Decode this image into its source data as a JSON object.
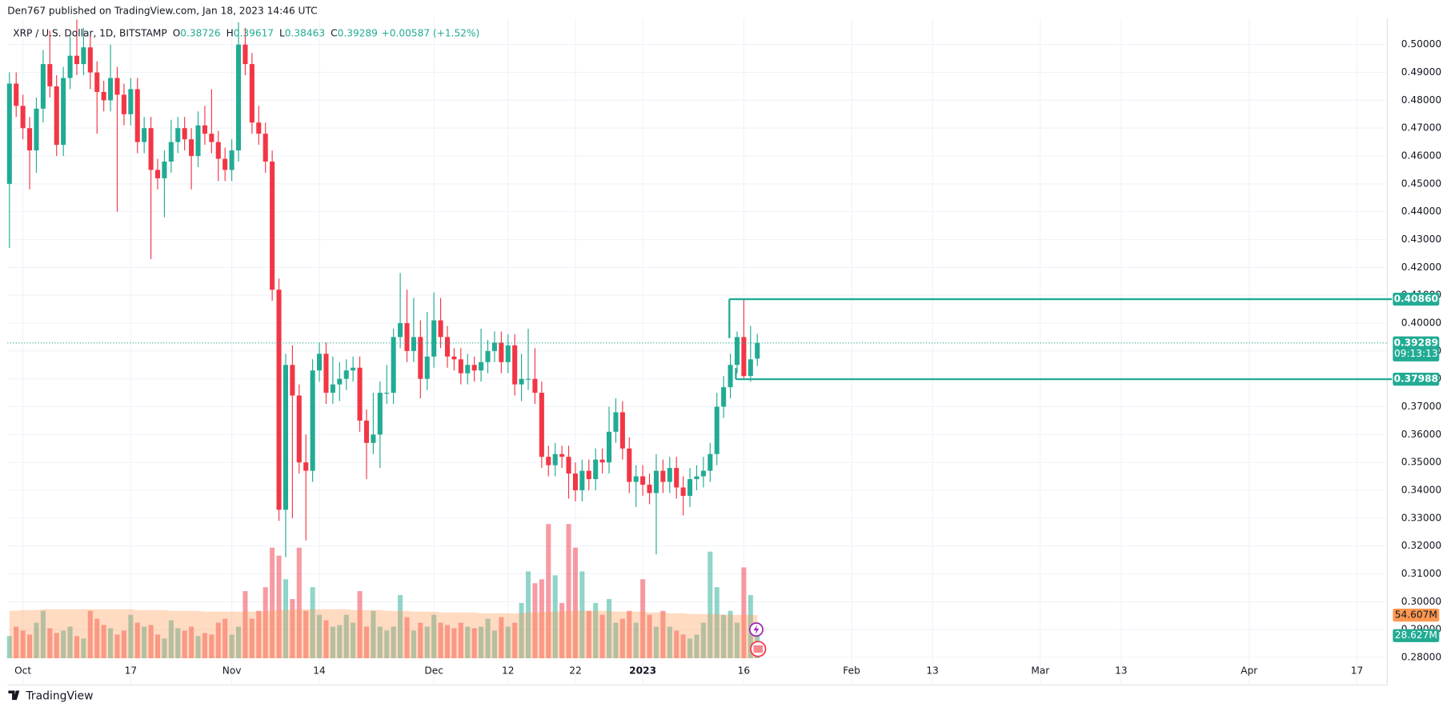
{
  "header": {
    "published": "Den767 published on TradingView.com, Jan 18, 2023 14:46 UTC"
  },
  "footer": {
    "logo": "TradingView"
  },
  "chart_data": {
    "type": "candlestick",
    "symbol": "XRP / U.S. Dollar, 1D, BITSTAMP",
    "ohlc_prefixes": [
      "O",
      "H",
      "L",
      "C"
    ],
    "change": "+0.00587 (+1.52%)",
    "countdown": "09:13:13",
    "up_color": "#22ab94",
    "down_color": "#f23645",
    "x": [
      -2,
      -1,
      0,
      1,
      2,
      3,
      4,
      5,
      6,
      7,
      8,
      9,
      10,
      11,
      12,
      13,
      14,
      15,
      16,
      17,
      18,
      19,
      20,
      21,
      22,
      23,
      24,
      25,
      26,
      27,
      28,
      29,
      30,
      31,
      32,
      33,
      34,
      35,
      36,
      37,
      38,
      39,
      40,
      41,
      42,
      43,
      44,
      45,
      46,
      47,
      48,
      49,
      50,
      51,
      52,
      53,
      54,
      55,
      56,
      57,
      58,
      59,
      60,
      61,
      62,
      63,
      64,
      65,
      66,
      67,
      68,
      69,
      70,
      71,
      72,
      73,
      74,
      75,
      76,
      77,
      78,
      79,
      80,
      81,
      82,
      83,
      84,
      85,
      86,
      87,
      88,
      89,
      90,
      91,
      92,
      93,
      94,
      95,
      96,
      97,
      98,
      99,
      100,
      101,
      102,
      103,
      104,
      105,
      106,
      107,
      108,
      109
    ],
    "open": [
      0.45,
      0.486,
      0.478,
      0.47,
      0.462,
      0.477,
      0.493,
      0.485,
      0.464,
      0.488,
      0.496,
      0.493,
      0.499,
      0.49,
      0.483,
      0.48,
      0.488,
      0.482,
      0.475,
      0.484,
      0.465,
      0.47,
      0.455,
      0.452,
      0.458,
      0.465,
      0.47,
      0.466,
      0.46,
      0.471,
      0.468,
      0.465,
      0.459,
      0.455,
      0.462,
      0.5,
      0.493,
      0.472,
      0.468,
      0.458,
      0.412,
      0.333,
      0.385,
      0.374,
      0.35,
      0.347,
      0.383,
      0.389,
      0.375,
      0.378,
      0.38,
      0.383,
      0.384,
      0.365,
      0.357,
      0.36,
      0.375,
      0.375,
      0.395,
      0.4,
      0.39,
      0.395,
      0.38,
      0.388,
      0.401,
      0.395,
      0.388,
      0.387,
      0.382,
      0.385,
      0.383,
      0.386,
      0.39,
      0.393,
      0.386,
      0.392,
      0.378,
      0.38,
      0.38,
      0.375,
      0.352,
      0.349,
      0.353,
      0.352,
      0.346,
      0.34,
      0.347,
      0.344,
      0.351,
      0.35,
      0.361,
      0.368,
      0.355,
      0.343,
      0.345,
      0.342,
      0.339,
      0.347,
      0.343,
      0.348,
      0.341,
      0.338,
      0.344,
      0.345,
      0.347,
      0.353,
      0.37,
      0.377,
      0.385,
      0.395,
      0.381,
      0.38726
    ],
    "high": [
      0.49,
      0.49,
      0.482,
      0.474,
      0.481,
      0.498,
      0.505,
      0.489,
      0.492,
      0.503,
      0.509,
      0.506,
      0.503,
      0.494,
      0.487,
      0.5,
      0.492,
      0.486,
      0.488,
      0.488,
      0.474,
      0.474,
      0.459,
      0.462,
      0.473,
      0.474,
      0.474,
      0.47,
      0.476,
      0.478,
      0.484,
      0.469,
      0.463,
      0.466,
      0.508,
      0.506,
      0.497,
      0.478,
      0.472,
      0.462,
      0.416,
      0.389,
      0.392,
      0.378,
      0.36,
      0.387,
      0.393,
      0.393,
      0.388,
      0.386,
      0.387,
      0.388,
      0.388,
      0.369,
      0.375,
      0.379,
      0.385,
      0.398,
      0.418,
      0.412,
      0.409,
      0.401,
      0.404,
      0.411,
      0.409,
      0.399,
      0.391,
      0.391,
      0.389,
      0.388,
      0.398,
      0.394,
      0.397,
      0.397,
      0.396,
      0.396,
      0.389,
      0.398,
      0.391,
      0.379,
      0.356,
      0.357,
      0.356,
      0.356,
      0.35,
      0.351,
      0.351,
      0.355,
      0.355,
      0.37,
      0.373,
      0.372,
      0.359,
      0.349,
      0.349,
      0.346,
      0.353,
      0.351,
      0.352,
      0.352,
      0.345,
      0.348,
      0.349,
      0.352,
      0.357,
      0.375,
      0.381,
      0.389,
      0.397,
      0.4086,
      0.399,
      0.39617
    ],
    "low": [
      0.427,
      0.474,
      0.466,
      0.448,
      0.454,
      0.472,
      0.481,
      0.46,
      0.46,
      0.484,
      0.489,
      0.489,
      0.484,
      0.468,
      0.476,
      0.476,
      0.44,
      0.471,
      0.471,
      0.461,
      0.461,
      0.423,
      0.448,
      0.438,
      0.454,
      0.461,
      0.462,
      0.448,
      0.456,
      0.464,
      0.461,
      0.451,
      0.451,
      0.451,
      0.458,
      0.489,
      0.468,
      0.464,
      0.454,
      0.408,
      0.329,
      0.316,
      0.33,
      0.346,
      0.322,
      0.343,
      0.379,
      0.371,
      0.371,
      0.372,
      0.376,
      0.379,
      0.361,
      0.344,
      0.353,
      0.348,
      0.371,
      0.371,
      0.391,
      0.386,
      0.386,
      0.373,
      0.376,
      0.384,
      0.391,
      0.384,
      0.383,
      0.378,
      0.378,
      0.379,
      0.379,
      0.382,
      0.386,
      0.382,
      0.382,
      0.374,
      0.372,
      0.376,
      0.371,
      0.348,
      0.345,
      0.345,
      0.348,
      0.337,
      0.336,
      0.336,
      0.34,
      0.34,
      0.346,
      0.346,
      0.357,
      0.351,
      0.339,
      0.334,
      0.338,
      0.335,
      0.317,
      0.339,
      0.339,
      0.337,
      0.331,
      0.334,
      0.34,
      0.341,
      0.343,
      0.349,
      0.366,
      0.373,
      0.382,
      0.3799,
      0.379,
      0.38463
    ],
    "close": [
      0.486,
      0.478,
      0.47,
      0.462,
      0.477,
      0.493,
      0.485,
      0.464,
      0.488,
      0.496,
      0.493,
      0.499,
      0.49,
      0.483,
      0.48,
      0.488,
      0.482,
      0.475,
      0.484,
      0.465,
      0.47,
      0.455,
      0.452,
      0.458,
      0.465,
      0.47,
      0.466,
      0.46,
      0.471,
      0.468,
      0.465,
      0.459,
      0.455,
      0.462,
      0.5,
      0.493,
      0.472,
      0.468,
      0.458,
      0.412,
      0.333,
      0.385,
      0.374,
      0.35,
      0.347,
      0.383,
      0.389,
      0.375,
      0.378,
      0.38,
      0.383,
      0.384,
      0.365,
      0.357,
      0.36,
      0.375,
      0.375,
      0.395,
      0.4,
      0.39,
      0.395,
      0.38,
      0.388,
      0.401,
      0.395,
      0.388,
      0.387,
      0.382,
      0.385,
      0.383,
      0.386,
      0.39,
      0.393,
      0.386,
      0.392,
      0.378,
      0.38,
      0.38,
      0.375,
      0.352,
      0.349,
      0.353,
      0.352,
      0.346,
      0.34,
      0.347,
      0.344,
      0.351,
      0.35,
      0.361,
      0.368,
      0.355,
      0.343,
      0.345,
      0.342,
      0.339,
      0.347,
      0.343,
      0.348,
      0.341,
      0.338,
      0.344,
      0.345,
      0.347,
      0.353,
      0.37,
      0.377,
      0.385,
      0.395,
      0.381,
      0.387,
      0.39289
    ],
    "volume": {
      "values": [
        28,
        40,
        35,
        30,
        45,
        60,
        38,
        32,
        35,
        40,
        28,
        25,
        60,
        50,
        42,
        38,
        30,
        35,
        55,
        45,
        40,
        42,
        30,
        25,
        48,
        38,
        35,
        40,
        28,
        32,
        30,
        45,
        50,
        30,
        40,
        85,
        50,
        60,
        90,
        140,
        130,
        100,
        75,
        140,
        60,
        90,
        55,
        48,
        40,
        42,
        55,
        45,
        85,
        40,
        60,
        40,
        35,
        40,
        80,
        52,
        35,
        45,
        40,
        55,
        45,
        42,
        38,
        45,
        40,
        38,
        40,
        50,
        35,
        52,
        40,
        45,
        70,
        110,
        95,
        100,
        170,
        105,
        70,
        170,
        140,
        110,
        60,
        70,
        55,
        75,
        45,
        50,
        60,
        45,
        100,
        55,
        40,
        60,
        40,
        35,
        30,
        25,
        30,
        45,
        135,
        90,
        55,
        60,
        45,
        115,
        80,
        28.627
      ],
      "ma": [
        60,
        60,
        61,
        61,
        61,
        62,
        62,
        62,
        62,
        62,
        62,
        62,
        62,
        62,
        62,
        62,
        62,
        62,
        62,
        61,
        61,
        61,
        61,
        61,
        60,
        60,
        60,
        60,
        60,
        59,
        59,
        59,
        59,
        59,
        59,
        59,
        59,
        59,
        60,
        60,
        61,
        61,
        61,
        62,
        62,
        62,
        62,
        62,
        62,
        62,
        62,
        61,
        61,
        61,
        61,
        61,
        60,
        60,
        60,
        60,
        59,
        59,
        59,
        59,
        58,
        58,
        58,
        58,
        58,
        58,
        57,
        57,
        57,
        57,
        57,
        57,
        57,
        58,
        58,
        58,
        59,
        59,
        59,
        60,
        60,
        60,
        60,
        60,
        60,
        60,
        59,
        59,
        59,
        59,
        59,
        58,
        58,
        58,
        57,
        57,
        57,
        56,
        56,
        56,
        56,
        56,
        55,
        55,
        55,
        55,
        55,
        54.607
      ],
      "ma_label": "54.607M",
      "last_label": "28.627M",
      "ma_color": "#ff9850"
    },
    "levels": [
      {
        "value": 0.4086,
        "label": "0.40860"
      },
      {
        "value": 0.37988,
        "label": "0.37988"
      }
    ],
    "xlim": [
      -2.3,
      202.5
    ],
    "xticks": [
      {
        "value": 0,
        "label": "Oct"
      },
      {
        "value": 16,
        "label": "17"
      },
      {
        "value": 31,
        "label": "Nov"
      },
      {
        "value": 44,
        "label": "14"
      },
      {
        "value": 61,
        "label": "Dec"
      },
      {
        "value": 72,
        "label": "12"
      },
      {
        "value": 82,
        "label": "22"
      },
      {
        "value": 92,
        "label": "2023"
      },
      {
        "value": 107,
        "label": "16"
      },
      {
        "value": 123,
        "label": "Feb"
      },
      {
        "value": 135,
        "label": "13"
      },
      {
        "value": 151,
        "label": "Mar"
      },
      {
        "value": 163,
        "label": "13"
      },
      {
        "value": 182,
        "label": "Apr"
      },
      {
        "value": 198,
        "label": "17"
      }
    ],
    "ylim": [
      0.2797,
      0.516
    ],
    "yticks": [
      {
        "value": 0.28,
        "label": "0.28000"
      },
      {
        "value": 0.29,
        "label": "0.29000"
      },
      {
        "value": 0.3,
        "label": "0.30000"
      },
      {
        "value": 0.31,
        "label": "0.31000"
      },
      {
        "value": 0.32,
        "label": "0.32000"
      },
      {
        "value": 0.33,
        "label": "0.33000"
      },
      {
        "value": 0.34,
        "label": "0.34000"
      },
      {
        "value": 0.35,
        "label": "0.35000"
      },
      {
        "value": 0.36,
        "label": "0.36000"
      },
      {
        "value": 0.37,
        "label": "0.37000"
      },
      {
        "value": 0.38,
        "label": "0.38000"
      },
      {
        "value": 0.39,
        "label": "0.39000"
      },
      {
        "value": 0.4,
        "label": "0.40000"
      },
      {
        "value": 0.41,
        "label": "0.41000"
      },
      {
        "value": 0.42,
        "label": "0.42000"
      },
      {
        "value": 0.43,
        "label": "0.43000"
      },
      {
        "value": 0.44,
        "label": "0.44000"
      },
      {
        "value": 0.45,
        "label": "0.45000"
      },
      {
        "value": 0.46,
        "label": "0.46000"
      },
      {
        "value": 0.47,
        "label": "0.47000"
      },
      {
        "value": 0.48,
        "label": "0.48000"
      },
      {
        "value": 0.49,
        "label": "0.49000"
      },
      {
        "value": 0.5,
        "label": "0.50000"
      }
    ],
    "grid": true
  }
}
